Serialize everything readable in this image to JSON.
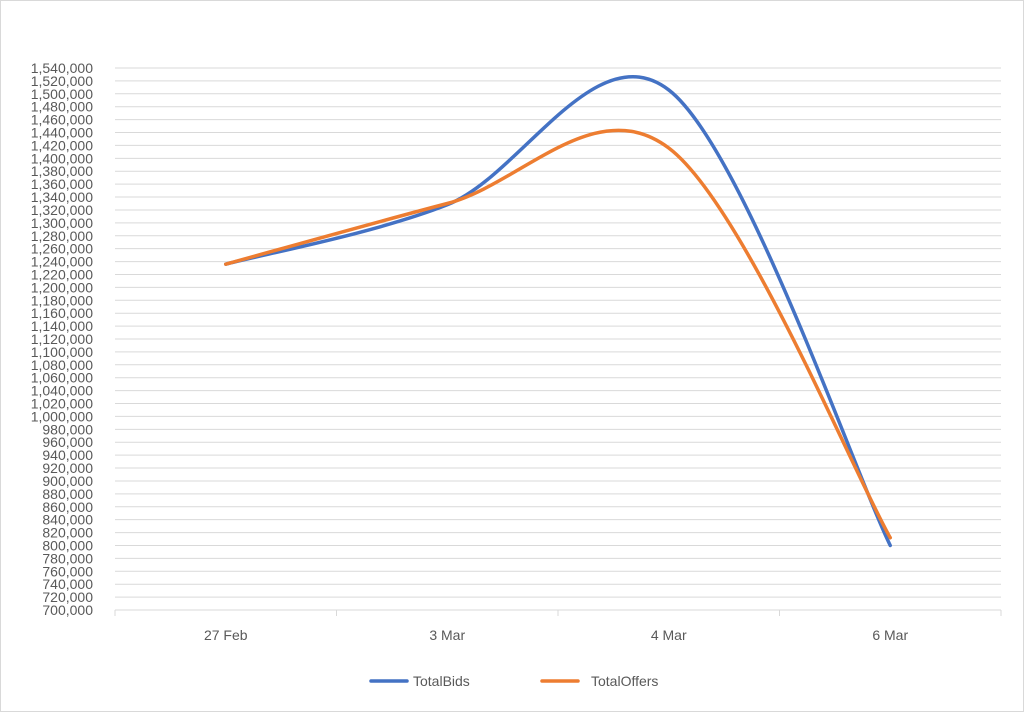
{
  "chart_data": {
    "type": "line",
    "smooth": true,
    "categories": [
      "27 Feb",
      "3 Mar",
      "4 Mar",
      "6 Mar"
    ],
    "series": [
      {
        "name": "TotalBids",
        "color": "#4472C4",
        "values": [
          1236000,
          1328000,
          1506000,
          800000
        ]
      },
      {
        "name": "TotalOffers",
        "color": "#ED7D31",
        "values": [
          1236000,
          1330000,
          1416000,
          812000
        ]
      }
    ],
    "ylim": [
      700000,
      1540000
    ],
    "ystep": 20000,
    "y_ticks": [
      "700,000",
      "720,000",
      "740,000",
      "760,000",
      "780,000",
      "800,000",
      "820,000",
      "840,000",
      "860,000",
      "880,000",
      "900,000",
      "920,000",
      "940,000",
      "960,000",
      "980,000",
      "1,000,000",
      "1,020,000",
      "1,040,000",
      "1,060,000",
      "1,080,000",
      "1,100,000",
      "1,120,000",
      "1,140,000",
      "1,160,000",
      "1,180,000",
      "1,200,000",
      "1,220,000",
      "1,240,000",
      "1,260,000",
      "1,280,000",
      "1,300,000",
      "1,320,000",
      "1,340,000",
      "1,360,000",
      "1,380,000",
      "1,400,000",
      "1,420,000",
      "1,440,000",
      "1,460,000",
      "1,480,000",
      "1,500,000",
      "1,520,000",
      "1,540,000"
    ],
    "grid": true,
    "legend": "bottom-center",
    "title": "",
    "xlabel": "",
    "ylabel": ""
  }
}
